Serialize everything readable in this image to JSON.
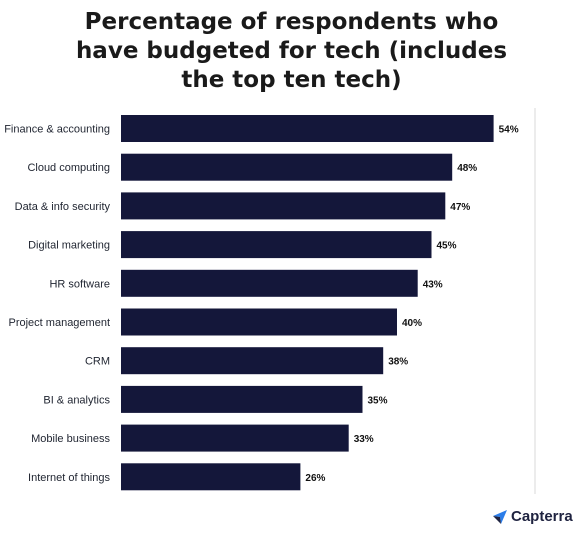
{
  "title_lines": [
    "Percentage of respondents who",
    "have budgeted for tech (includes",
    "the top ten tech)"
  ],
  "brand": {
    "name": "Capterra",
    "logo_icon": "capterra-arrow-icon",
    "logo_color": "#2b7de9"
  },
  "colors": {
    "bar": "#14173a",
    "gridline": "#d9d9d9"
  },
  "chart_data": {
    "type": "bar",
    "orientation": "horizontal",
    "title": "Percentage of respondents who have budgeted for tech (includes the top ten tech)",
    "categories": [
      "Finance & accounting",
      "Cloud computing",
      "Data & info security",
      "Digital marketing",
      "HR software",
      "Project management",
      "CRM",
      "BI & analytics",
      "Mobile business",
      "Internet of things"
    ],
    "values": [
      54,
      48,
      47,
      45,
      43,
      40,
      38,
      35,
      33,
      26
    ],
    "value_labels": [
      "54%",
      "48%",
      "47%",
      "45%",
      "43%",
      "40%",
      "38%",
      "35%",
      "33%",
      "26%"
    ],
    "xlim": [
      0,
      60
    ],
    "grid": true,
    "legend": "none"
  }
}
